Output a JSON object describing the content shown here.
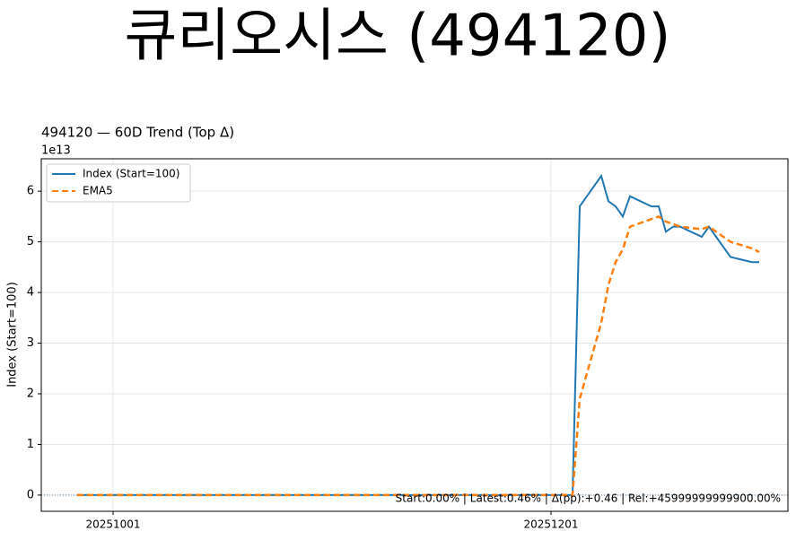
{
  "chart_data": {
    "type": "line",
    "title": "큐리오시스 (494120)",
    "subtitle": "494120 — 60D Trend (Top Δ)",
    "y_label": "Index (Start=100)",
    "y_offset_label": "1e13",
    "annotation": "Start:0.00% | Latest:0.46% | Δ(pp):+0.46 | Rel:+45999999999900.00%",
    "x": [
      "20250926",
      "20251001",
      "20251010",
      "20251020",
      "20251031",
      "20251110",
      "20251120",
      "20251201",
      "20251204",
      "20251205",
      "20251208",
      "20251209",
      "20251210",
      "20251211",
      "20251212",
      "20251215",
      "20251216",
      "20251217",
      "20251218",
      "20251219",
      "20251222",
      "20251223",
      "20251224",
      "20251226",
      "20251229",
      "20251230"
    ],
    "series": [
      {
        "name": "Index (Start=100)",
        "color": "#1f77b4",
        "dash": "none",
        "values": [
          0,
          0,
          0,
          0,
          0,
          0,
          0,
          0,
          0,
          5.7,
          6.3,
          5.8,
          5.7,
          5.5,
          5.9,
          5.7,
          5.7,
          5.2,
          5.3,
          5.3,
          5.1,
          5.3,
          5.1,
          4.7,
          4.6,
          4.6
        ]
      },
      {
        "name": "EMA5",
        "color": "#ff7f0e",
        "dash": "7,4",
        "values": [
          0,
          0,
          0,
          0,
          0,
          0,
          0,
          0,
          0,
          1.9,
          3.4,
          4.15,
          4.6,
          4.85,
          5.3,
          5.45,
          5.5,
          5.4,
          5.35,
          5.3,
          5.25,
          5.3,
          5.2,
          5.0,
          4.87,
          4.8
        ]
      }
    ],
    "xlim": [
      "20250921",
      "20260103"
    ],
    "xticks": [
      "20251001",
      "20251201"
    ],
    "ylim": [
      -0.32,
      6.64
    ],
    "yticks": [
      0,
      1,
      2,
      3,
      4,
      5,
      6
    ],
    "grid": true,
    "legend": "upper-left"
  }
}
